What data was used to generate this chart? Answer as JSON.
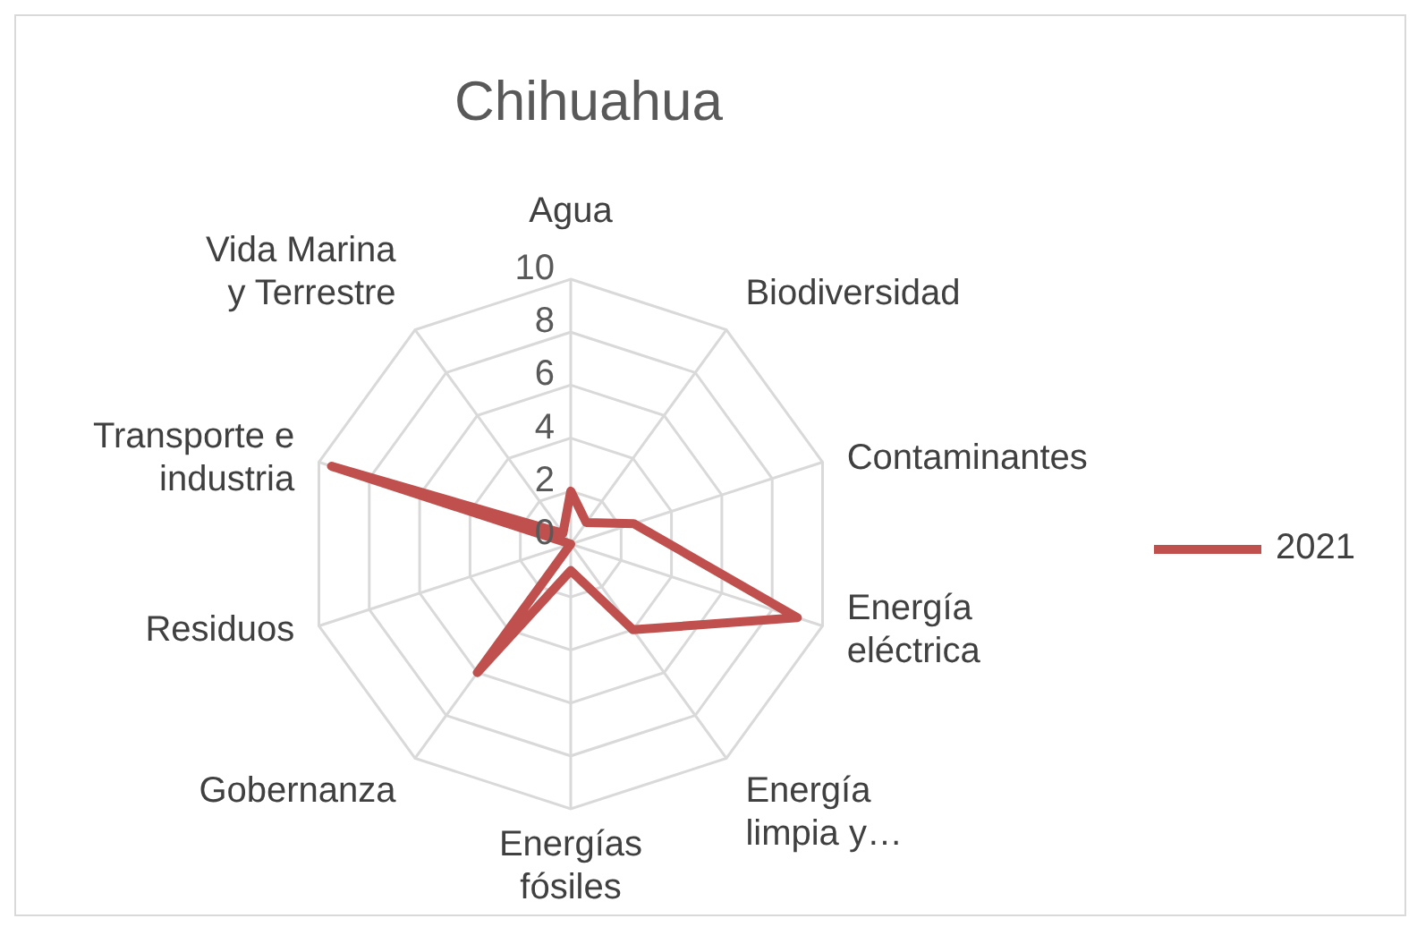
{
  "chart_data": {
    "type": "radar",
    "title": "Chihuahua",
    "categories": [
      "Agua",
      "Biodiversidad",
      "Contaminantes",
      "Energía eléctrica",
      "Energía limpia y…",
      "Energías fósiles",
      "Gobernanza",
      "Residuos",
      "Transporte e industria",
      "Vida Marina y Terrestre"
    ],
    "series": [
      {
        "name": "2021",
        "color": "#c0504d",
        "values": [
          2,
          1,
          2.5,
          9,
          4,
          1,
          6,
          0,
          9.5,
          0.5
        ]
      }
    ],
    "ylim": [
      0,
      10
    ],
    "yticks": [
      0,
      2,
      4,
      6,
      8,
      10
    ],
    "grid": true,
    "legend": "right",
    "marker": "none"
  }
}
